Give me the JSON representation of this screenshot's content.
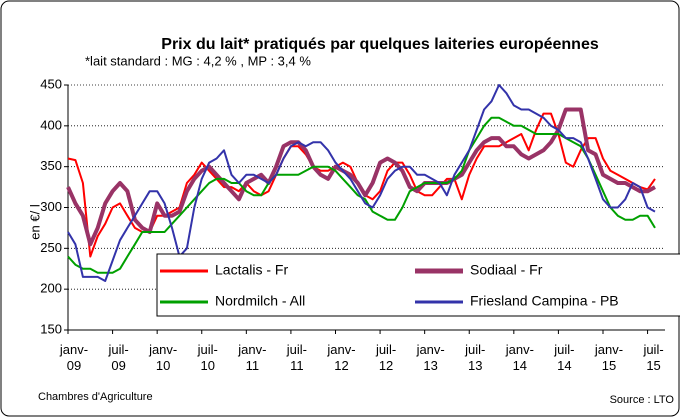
{
  "chart_data": {
    "type": "line",
    "title": "Prix du lait* pratiqués par quelques laiteries européennes",
    "subtitle": "*lait standard : MG : 4,2 % , MP : 3,4 %",
    "y_label": "en €/ l",
    "footer_left": "Chambres d'Agriculture",
    "footer_right": "Source : LTO",
    "categories": [
      "janv-\n09",
      null,
      null,
      null,
      null,
      null,
      "juil-\n09",
      null,
      null,
      null,
      null,
      null,
      "janv-\n10",
      null,
      null,
      null,
      null,
      null,
      "juil-\n10",
      null,
      null,
      null,
      null,
      null,
      "janv-\n11",
      null,
      null,
      null,
      null,
      null,
      "juil-\n11",
      null,
      null,
      null,
      null,
      null,
      "janv-\n12",
      null,
      null,
      null,
      null,
      null,
      "juil-\n12",
      null,
      null,
      null,
      null,
      null,
      "janv-\n13",
      null,
      null,
      null,
      null,
      null,
      "juil-\n13",
      null,
      null,
      null,
      null,
      null,
      "janv-\n14",
      null,
      null,
      null,
      null,
      null,
      "juil-\n14",
      null,
      null,
      null,
      null,
      null,
      "janv-\n15",
      null,
      null,
      null,
      null,
      null,
      "juil-\n15",
      null
    ],
    "series": [
      {
        "name": "Lactalis - Fr",
        "color": "#ff0000",
        "width": 2,
        "values": [
          360,
          358,
          330,
          240,
          265,
          280,
          300,
          305,
          290,
          275,
          270,
          270,
          290,
          290,
          295,
          300,
          330,
          340,
          355,
          345,
          335,
          325,
          325,
          320,
          330,
          320,
          315,
          320,
          340,
          360,
          375,
          375,
          365,
          350,
          345,
          345,
          350,
          355,
          350,
          330,
          315,
          310,
          320,
          345,
          355,
          355,
          340,
          320,
          315,
          315,
          325,
          335,
          335,
          310,
          340,
          360,
          375,
          375,
          375,
          380,
          385,
          390,
          370,
          395,
          415,
          415,
          390,
          355,
          350,
          370,
          385,
          385,
          360,
          345,
          340,
          335,
          330,
          325,
          322,
          335
        ]
      },
      {
        "name": "Sodiaal - Fr",
        "color": "#993366",
        "width": 4,
        "values": [
          325,
          305,
          290,
          255,
          275,
          305,
          320,
          330,
          320,
          285,
          275,
          270,
          305,
          290,
          290,
          295,
          320,
          335,
          345,
          350,
          340,
          330,
          320,
          310,
          330,
          335,
          340,
          330,
          350,
          375,
          380,
          380,
          370,
          350,
          340,
          335,
          350,
          345,
          340,
          330,
          315,
          330,
          355,
          360,
          355,
          345,
          325,
          320,
          330,
          330,
          330,
          330,
          335,
          340,
          355,
          370,
          380,
          385,
          385,
          375,
          375,
          365,
          360,
          365,
          370,
          380,
          395,
          420,
          420,
          420,
          370,
          365,
          340,
          335,
          330,
          330,
          325,
          320,
          320,
          325
        ]
      },
      {
        "name": "Nordmilch - All",
        "color": "#00a000",
        "width": 2,
        "values": [
          240,
          230,
          225,
          225,
          220,
          220,
          220,
          225,
          240,
          255,
          270,
          270,
          270,
          270,
          280,
          290,
          300,
          310,
          320,
          330,
          335,
          335,
          330,
          330,
          320,
          315,
          315,
          330,
          340,
          340,
          340,
          340,
          345,
          350,
          350,
          350,
          345,
          335,
          325,
          315,
          310,
          295,
          290,
          285,
          285,
          300,
          320,
          325,
          330,
          330,
          330,
          330,
          335,
          345,
          370,
          385,
          400,
          410,
          410,
          405,
          400,
          400,
          395,
          390,
          390,
          390,
          390,
          385,
          380,
          375,
          360,
          340,
          320,
          300,
          290,
          285,
          285,
          290,
          290,
          275
        ]
      },
      {
        "name": "Friesland Campina - PB",
        "color": "#3333aa",
        "width": 2,
        "values": [
          270,
          255,
          215,
          215,
          215,
          210,
          235,
          260,
          275,
          290,
          305,
          320,
          320,
          305,
          275,
          240,
          250,
          300,
          335,
          355,
          360,
          370,
          340,
          330,
          340,
          340,
          335,
          330,
          340,
          360,
          375,
          380,
          375,
          380,
          380,
          370,
          355,
          345,
          335,
          320,
          305,
          300,
          315,
          335,
          345,
          350,
          350,
          340,
          340,
          335,
          330,
          315,
          340,
          355,
          370,
          395,
          420,
          430,
          450,
          440,
          425,
          420,
          420,
          415,
          410,
          400,
          395,
          385,
          385,
          380,
          360,
          335,
          310,
          300,
          300,
          310,
          330,
          325,
          300,
          295
        ]
      }
    ],
    "ylim": [
      150,
      450
    ],
    "yticks": [
      150,
      200,
      250,
      300,
      350,
      400,
      450
    ],
    "grid": true
  }
}
